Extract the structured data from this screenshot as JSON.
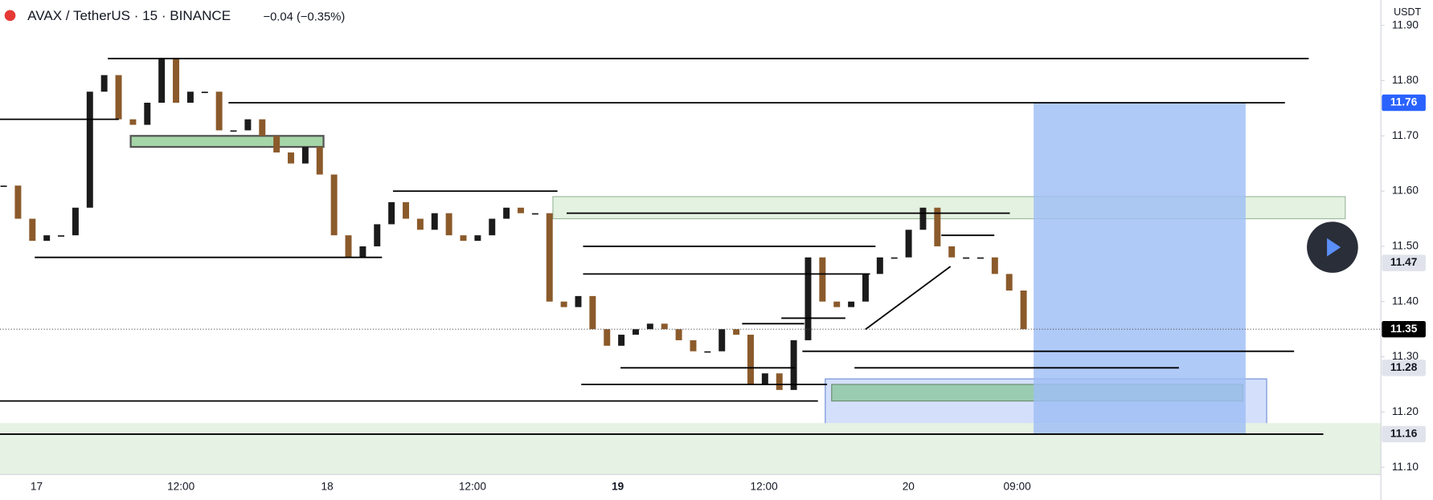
{
  "header": {
    "symbol": "AVAX / TetherUS · 15 · BINANCE",
    "change": "−0.04 (−0.35%)"
  },
  "chart_data": {
    "type": "candlestick",
    "y_unit": "USDT",
    "up_color": "#1b1b1b",
    "down_color": "#8b5a2b",
    "closes": [
      11.61,
      11.55,
      11.51,
      11.52,
      11.52,
      11.57,
      11.78,
      11.81,
      11.73,
      11.72,
      11.76,
      11.84,
      11.76,
      11.78,
      11.78,
      11.71,
      11.71,
      11.73,
      11.7,
      11.67,
      11.65,
      11.68,
      11.63,
      11.52,
      11.48,
      11.5,
      11.54,
      11.58,
      11.55,
      11.53,
      11.56,
      11.52,
      11.51,
      11.52,
      11.55,
      11.57,
      11.56,
      11.56,
      11.4,
      11.39,
      11.41,
      11.35,
      11.32,
      11.34,
      11.35,
      11.36,
      11.35,
      11.33,
      11.31,
      11.31,
      11.35,
      11.34,
      11.25,
      11.27,
      11.24,
      11.33,
      11.48,
      11.4,
      11.39,
      11.4,
      11.45,
      11.48,
      11.48,
      11.53,
      11.57,
      11.5,
      11.48,
      11.48,
      11.48,
      11.45,
      11.42,
      11.35
    ],
    "ylim": [
      11.087,
      11.946
    ],
    "yticks": [
      {
        "value": 11.1,
        "label": "11.10"
      },
      {
        "value": 11.2,
        "label": "11.20"
      },
      {
        "value": 11.3,
        "label": "11.30"
      },
      {
        "value": 11.4,
        "label": "11.40"
      },
      {
        "value": 11.5,
        "label": "11.50"
      },
      {
        "value": 11.6,
        "label": "11.60"
      },
      {
        "value": 11.7,
        "label": "11.70"
      },
      {
        "value": 11.8,
        "label": "11.80"
      },
      {
        "value": 11.9,
        "label": "11.90"
      }
    ],
    "x_labels": [
      "17",
      "12:00",
      "18",
      "12:00",
      "19",
      "12:00",
      "20",
      "09:00"
    ],
    "levels": [
      11.84,
      11.76,
      11.73,
      11.6,
      11.56,
      11.5,
      11.52,
      11.48,
      11.45,
      11.37,
      11.36,
      11.31,
      11.28,
      11.28,
      11.25,
      11.22,
      11.16
    ],
    "zones": [
      {
        "top": 11.946,
        "bottom": 11.087,
        "color": "#ffffff"
      },
      {
        "top": 11.7,
        "bottom": 11.68,
        "color": "#a5d6a7"
      },
      {
        "top": 11.59,
        "bottom": 11.55,
        "color": "#e4f2e1"
      },
      {
        "top": 11.26,
        "bottom": 11.16,
        "color": "#cfdcfb"
      },
      {
        "top": 11.25,
        "bottom": 11.22,
        "color": "#8fc9a3"
      },
      {
        "top": 11.18,
        "bottom": 11.087,
        "color": "#e6f2e3"
      },
      {
        "top": 11.76,
        "bottom": 11.16,
        "color": "#9fbef5"
      }
    ],
    "price_badges": [
      {
        "value": 11.76,
        "color": "#2962ff"
      },
      {
        "value": 11.47,
        "color": "#e0e3eb"
      },
      {
        "value": 11.35,
        "color": "#000000"
      },
      {
        "value": 11.28,
        "color": "#e0e3eb"
      },
      {
        "value": 11.16,
        "color": "#e0e3eb"
      }
    ]
  }
}
